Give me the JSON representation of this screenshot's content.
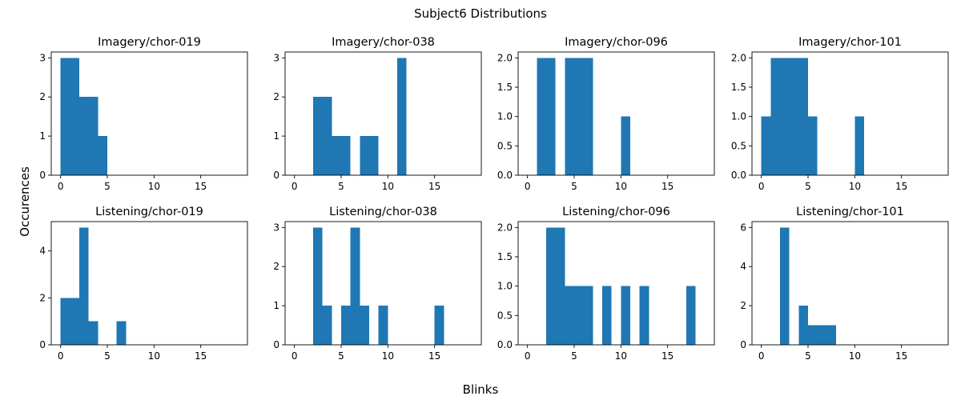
{
  "suptitle": "Subject6 Distributions",
  "xlabel": "Blinks",
  "ylabel": "Occurences",
  "bar_color": "#1f77b4",
  "chart_data": [
    {
      "type": "bar",
      "title": "Imagery/chor-019",
      "bins": [
        [
          0,
          2,
          3
        ],
        [
          2,
          4,
          2
        ],
        [
          4,
          5,
          1
        ]
      ],
      "xlim": [
        -1,
        20
      ],
      "ylim": [
        0,
        3.15
      ],
      "xticks": [
        0,
        5,
        10,
        15
      ],
      "yticks": [
        0,
        1,
        2,
        3
      ]
    },
    {
      "type": "bar",
      "title": "Imagery/chor-038",
      "bins": [
        [
          2,
          4,
          2
        ],
        [
          4,
          6,
          1
        ],
        [
          7,
          9,
          1
        ],
        [
          11,
          12,
          3
        ]
      ],
      "xlim": [
        -1,
        20
      ],
      "ylim": [
        0,
        3.15
      ],
      "xticks": [
        0,
        5,
        10,
        15
      ],
      "yticks": [
        0,
        1,
        2,
        3
      ]
    },
    {
      "type": "bar",
      "title": "Imagery/chor-096",
      "bins": [
        [
          1,
          3,
          2
        ],
        [
          4,
          7,
          2
        ],
        [
          10,
          11,
          1
        ]
      ],
      "xlim": [
        -1,
        20
      ],
      "ylim": [
        0,
        2.1
      ],
      "xticks": [
        0,
        5,
        10,
        15
      ],
      "yticks": [
        "0.0",
        "0.5",
        "1.0",
        "1.5",
        "2.0"
      ]
    },
    {
      "type": "bar",
      "title": "Imagery/chor-101",
      "bins": [
        [
          0,
          1,
          1
        ],
        [
          1,
          5,
          2
        ],
        [
          5,
          6,
          1
        ],
        [
          10,
          11,
          1
        ]
      ],
      "xlim": [
        -1,
        20
      ],
      "ylim": [
        0,
        2.1
      ],
      "xticks": [
        0,
        5,
        10,
        15
      ],
      "yticks": [
        "0.0",
        "0.5",
        "1.0",
        "1.5",
        "2.0"
      ]
    },
    {
      "type": "bar",
      "title": "Listening/chor-019",
      "bins": [
        [
          0,
          2,
          2
        ],
        [
          2,
          3,
          5
        ],
        [
          3,
          4,
          1
        ],
        [
          6,
          7,
          1
        ]
      ],
      "xlim": [
        -1,
        20
      ],
      "ylim": [
        0,
        5.25
      ],
      "xticks": [
        0,
        5,
        10,
        15
      ],
      "yticks": [
        0,
        2,
        4
      ]
    },
    {
      "type": "bar",
      "title": "Listening/chor-038",
      "bins": [
        [
          2,
          3,
          3
        ],
        [
          3,
          4,
          1
        ],
        [
          5,
          6,
          1
        ],
        [
          6,
          7,
          3
        ],
        [
          7,
          8,
          1
        ],
        [
          9,
          10,
          1
        ],
        [
          15,
          16,
          1
        ]
      ],
      "xlim": [
        -1,
        20
      ],
      "ylim": [
        0,
        3.15
      ],
      "xticks": [
        0,
        5,
        10,
        15
      ],
      "yticks": [
        0,
        1,
        2,
        3
      ]
    },
    {
      "type": "bar",
      "title": "Listening/chor-096",
      "bins": [
        [
          2,
          4,
          2
        ],
        [
          4,
          7,
          1
        ],
        [
          8,
          9,
          1
        ],
        [
          10,
          11,
          1
        ],
        [
          12,
          13,
          1
        ],
        [
          17,
          18,
          1
        ]
      ],
      "xlim": [
        -1,
        20
      ],
      "ylim": [
        0,
        2.1
      ],
      "xticks": [
        0,
        5,
        10,
        15
      ],
      "yticks": [
        "0.0",
        "0.5",
        "1.0",
        "1.5",
        "2.0"
      ]
    },
    {
      "type": "bar",
      "title": "Listening/chor-101",
      "bins": [
        [
          2,
          3,
          6
        ],
        [
          4,
          5,
          2
        ],
        [
          5,
          8,
          1
        ]
      ],
      "xlim": [
        -1,
        20
      ],
      "ylim": [
        0,
        6.3
      ],
      "xticks": [
        0,
        5,
        10,
        15
      ],
      "yticks": [
        0,
        2,
        4,
        6
      ]
    }
  ]
}
